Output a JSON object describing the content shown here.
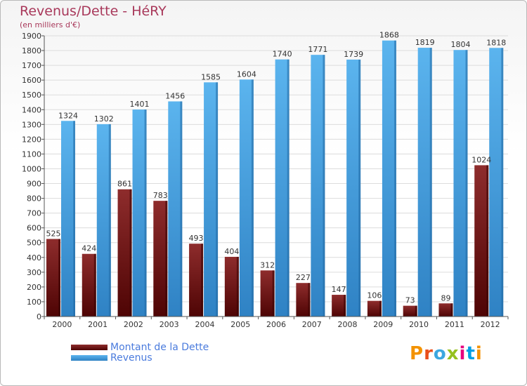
{
  "chart_data": {
    "type": "bar",
    "title": "Revenus/Dette - HéRY",
    "subtitle": "(en milliers d'€)",
    "categories": [
      "2000",
      "2001",
      "2002",
      "2003",
      "2004",
      "2005",
      "2006",
      "2007",
      "2008",
      "2009",
      "2010",
      "2011",
      "2012"
    ],
    "series": [
      {
        "name": "Montant de la Dette",
        "color": "#7a1a1a",
        "values": [
          525,
          424,
          861,
          783,
          493,
          404,
          312,
          227,
          147,
          106,
          73,
          89,
          1024
        ]
      },
      {
        "name": "Revenus",
        "color": "#4aa3e3",
        "values": [
          1324,
          1302,
          1401,
          1456,
          1585,
          1604,
          1740,
          1771,
          1739,
          1868,
          1819,
          1804,
          1818
        ]
      }
    ],
    "ylim": [
      0,
      1900
    ],
    "ytick_step": 100,
    "grid": true,
    "legend_position": "bottom-left"
  },
  "logo": {
    "letters": [
      "P",
      "r",
      "o",
      "x",
      "i",
      "t",
      "i"
    ],
    "colors": [
      "#f39200",
      "#e94e1b",
      "#3ba7e0",
      "#95c11f",
      "#e6007e",
      "#009fe3",
      "#f39200"
    ]
  }
}
